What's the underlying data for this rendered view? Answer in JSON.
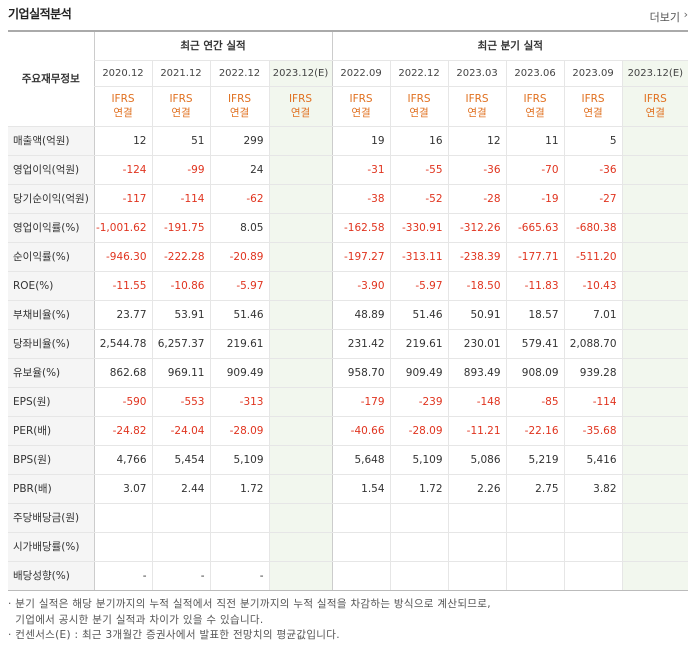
{
  "header": {
    "title": "기업실적분석",
    "more_label": "더보기"
  },
  "table": {
    "label_header": "주요재무정보",
    "annual_group": "최근 연간 실적",
    "quarter_group": "최근 분기 실적",
    "annual_periods": [
      "2020.12",
      "2021.12",
      "2022.12",
      "2023.12(E)"
    ],
    "quarter_periods": [
      "2022.09",
      "2022.12",
      "2023.03",
      "2023.06",
      "2023.09",
      "2023.12(E)"
    ],
    "basis_line1": "IFRS",
    "basis_line2": "연결",
    "rows": [
      {
        "label": "매출액(억원)",
        "values": [
          "12",
          "51",
          "299",
          "",
          "19",
          "16",
          "12",
          "11",
          "5",
          ""
        ]
      },
      {
        "label": "영업이익(억원)",
        "values": [
          "-124",
          "-99",
          "24",
          "",
          "-31",
          "-55",
          "-36",
          "-70",
          "-36",
          ""
        ]
      },
      {
        "label": "당기순이익(억원)",
        "values": [
          "-117",
          "-114",
          "-62",
          "",
          "-38",
          "-52",
          "-28",
          "-19",
          "-27",
          ""
        ]
      },
      {
        "label": "영업이익률(%)",
        "values": [
          "-1,001.62",
          "-191.75",
          "8.05",
          "",
          "-162.58",
          "-330.91",
          "-312.26",
          "-665.63",
          "-680.38",
          ""
        ]
      },
      {
        "label": "순이익률(%)",
        "values": [
          "-946.30",
          "-222.28",
          "-20.89",
          "",
          "-197.27",
          "-313.11",
          "-238.39",
          "-177.71",
          "-511.20",
          ""
        ]
      },
      {
        "label": "ROE(%)",
        "values": [
          "-11.55",
          "-10.86",
          "-5.97",
          "",
          "-3.90",
          "-5.97",
          "-18.50",
          "-11.83",
          "-10.43",
          ""
        ]
      },
      {
        "label": "부채비율(%)",
        "values": [
          "23.77",
          "53.91",
          "51.46",
          "",
          "48.89",
          "51.46",
          "50.91",
          "18.57",
          "7.01",
          ""
        ]
      },
      {
        "label": "당좌비율(%)",
        "values": [
          "2,544.78",
          "6,257.37",
          "219.61",
          "",
          "231.42",
          "219.61",
          "230.01",
          "579.41",
          "2,088.70",
          ""
        ]
      },
      {
        "label": "유보율(%)",
        "values": [
          "862.68",
          "969.11",
          "909.49",
          "",
          "958.70",
          "909.49",
          "893.49",
          "908.09",
          "939.28",
          ""
        ]
      },
      {
        "label": "EPS(원)",
        "values": [
          "-590",
          "-553",
          "-313",
          "",
          "-179",
          "-239",
          "-148",
          "-85",
          "-114",
          ""
        ]
      },
      {
        "label": "PER(배)",
        "values": [
          "-24.82",
          "-24.04",
          "-28.09",
          "",
          "-40.66",
          "-28.09",
          "-11.21",
          "-22.16",
          "-35.68",
          ""
        ]
      },
      {
        "label": "BPS(원)",
        "values": [
          "4,766",
          "5,454",
          "5,109",
          "",
          "5,648",
          "5,109",
          "5,086",
          "5,219",
          "5,416",
          ""
        ]
      },
      {
        "label": "PBR(배)",
        "values": [
          "3.07",
          "2.44",
          "1.72",
          "",
          "1.54",
          "1.72",
          "2.26",
          "2.75",
          "3.82",
          ""
        ]
      },
      {
        "label": "주당배당금(원)",
        "values": [
          "",
          "",
          "",
          "",
          "",
          "",
          "",
          "",
          "",
          ""
        ]
      },
      {
        "label": "시가배당률(%)",
        "values": [
          "",
          "",
          "",
          "",
          "",
          "",
          "",
          "",
          "",
          ""
        ]
      },
      {
        "label": "배당성향(%)",
        "values": [
          "-",
          "-",
          "-",
          "",
          "",
          "",
          "",
          "",
          "",
          ""
        ]
      }
    ]
  },
  "notes": {
    "line1": "· 분기 실적은 해당 분기까지의 누적 실적에서 직전 분기까지의 누적 실적을 차감하는 방식으로 계산되므로,",
    "line2": "  기업에서 공시한 분기 실적과 차이가 있을 수 있습니다.",
    "line3": "· 컨센서스(E) : 최근 3개월간 증권사에서 발표한 전망치의 평균값입니다."
  },
  "colors": {
    "negative": "#e0341f",
    "estimate_bg": "#f2f7ee",
    "basis": "#e07020"
  }
}
